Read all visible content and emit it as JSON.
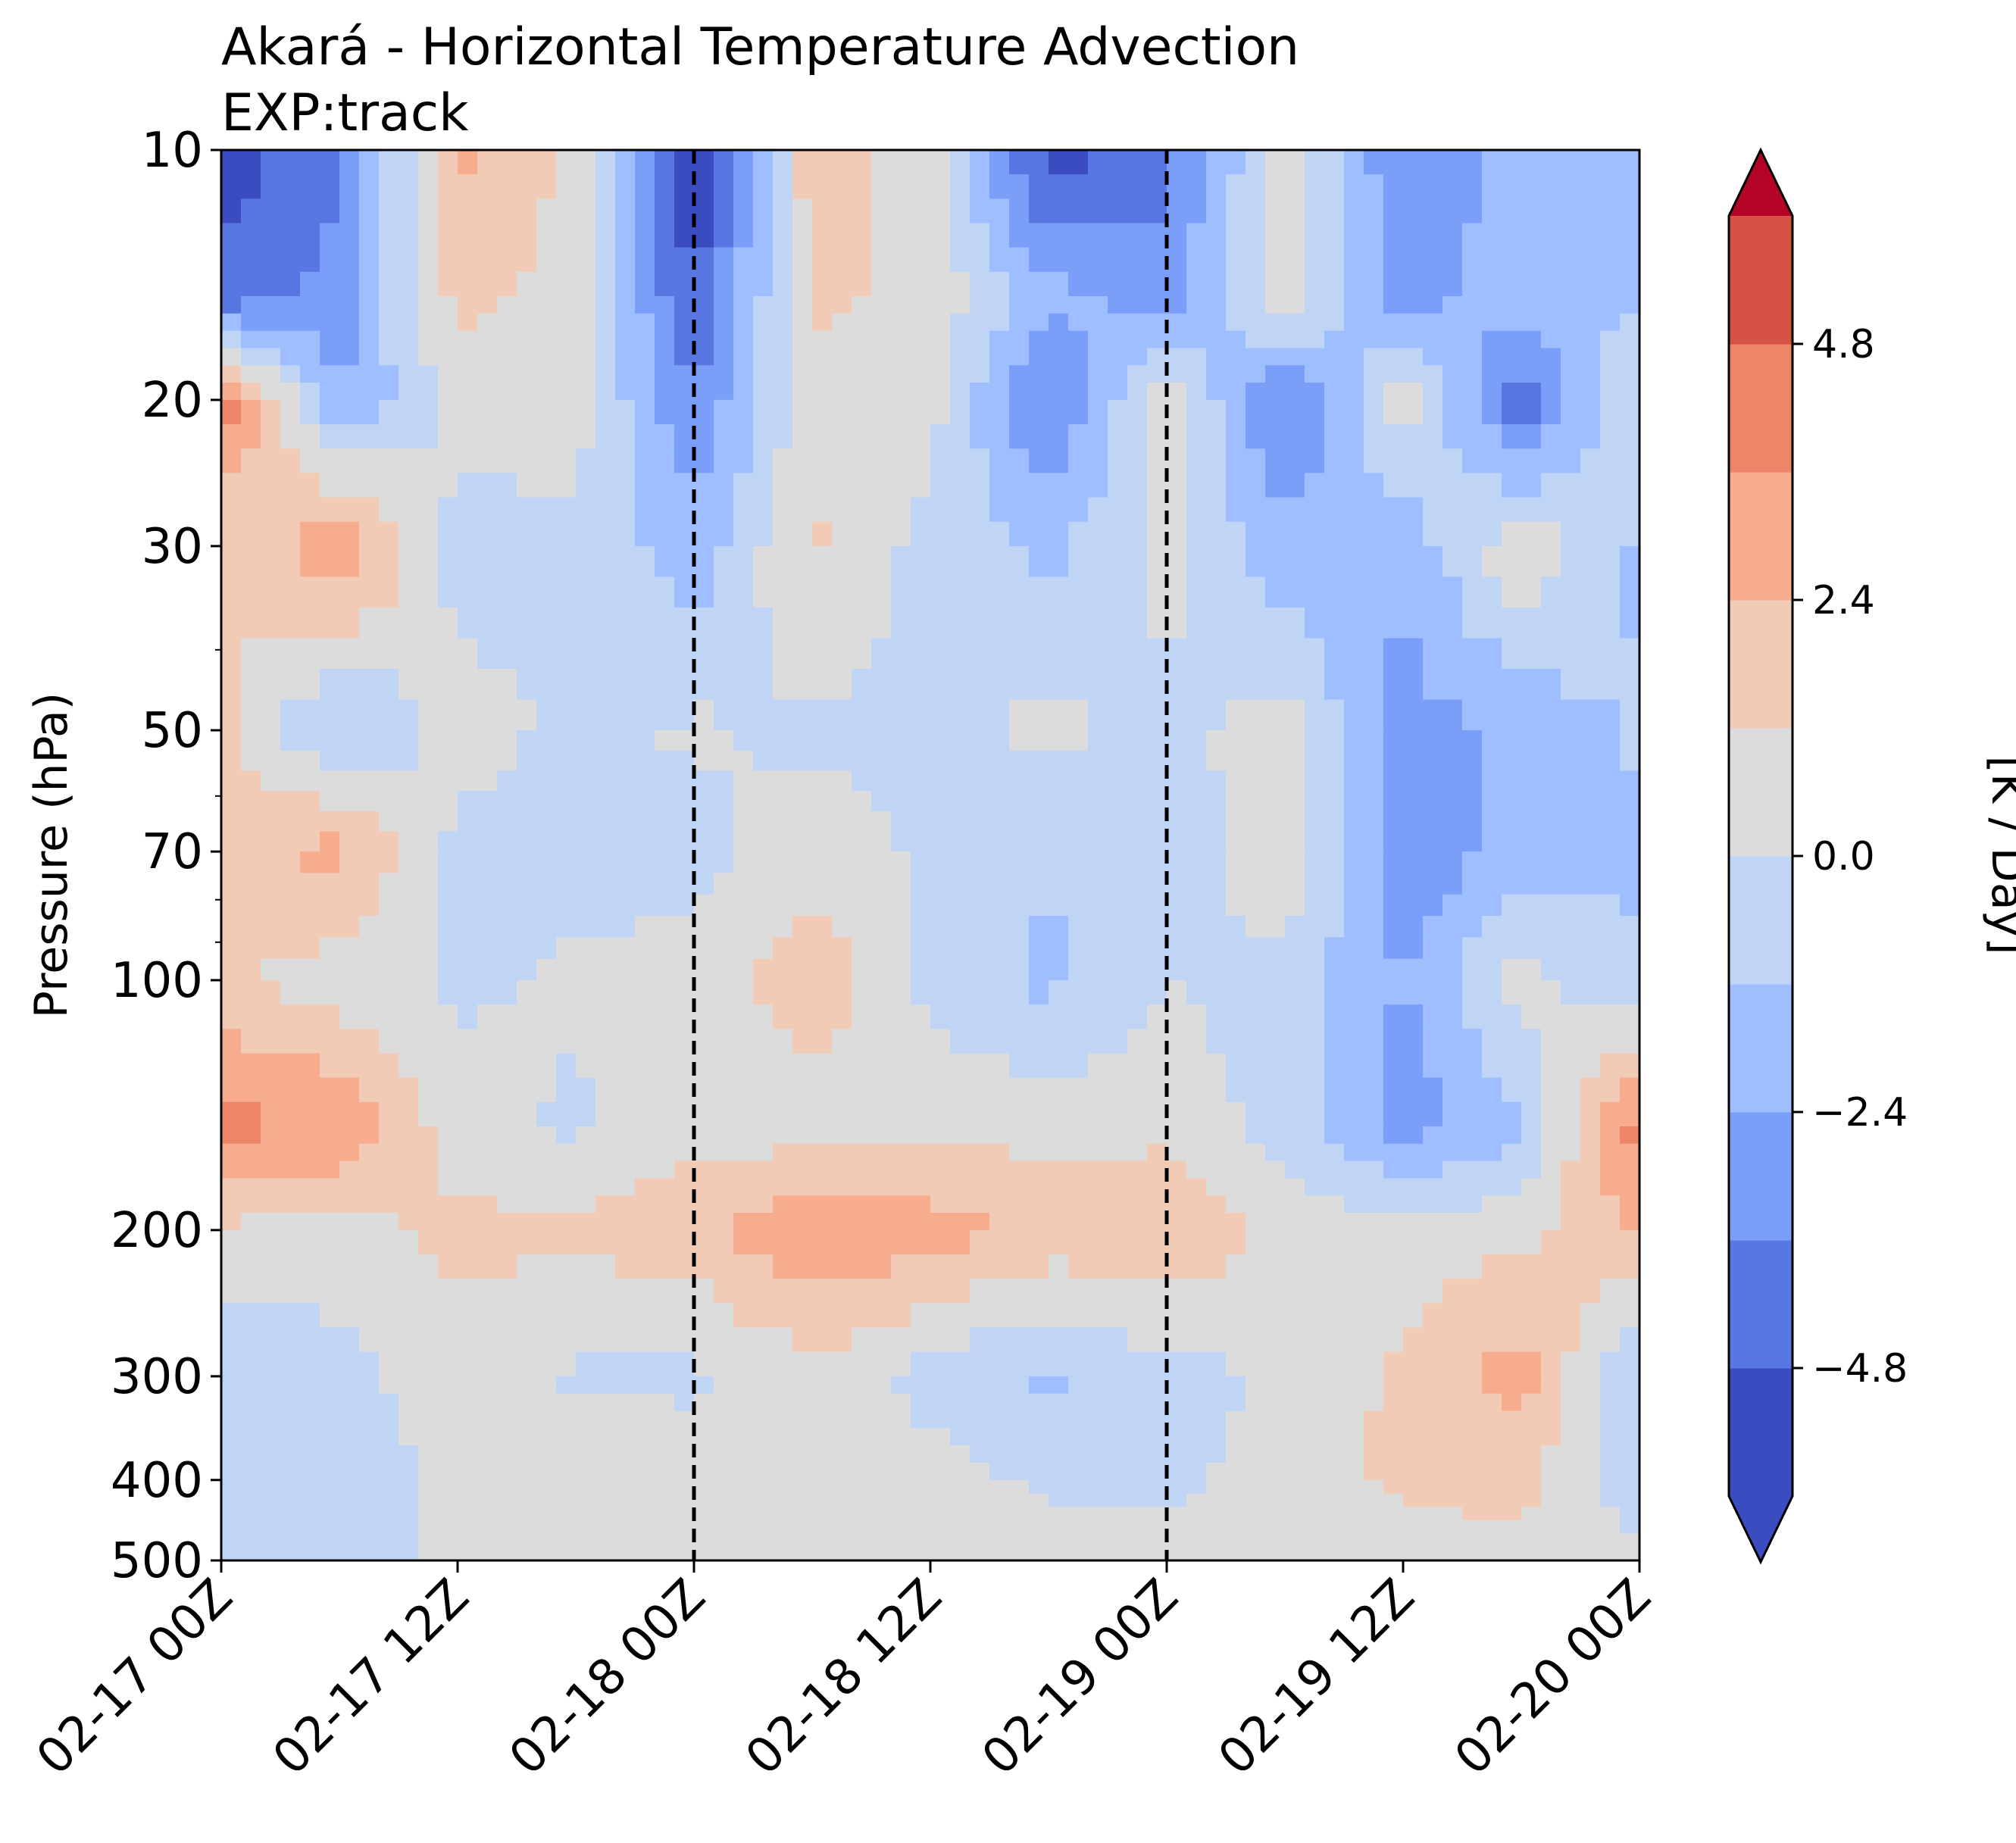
{
  "chart_data": {
    "type": "heatmap",
    "title": "Akará - Horizontal Temperature Advection",
    "subtitle": "EXP:track",
    "xlabel": "",
    "ylabel": "Pressure (hPa)",
    "y_scale": "log",
    "y_inverted": true,
    "ylim": [
      500,
      10
    ],
    "y_ticks": [
      10,
      20,
      30,
      50,
      70,
      100,
      200,
      300,
      400,
      500
    ],
    "y_tick_labels": [
      "10",
      "20",
      "30",
      "50",
      "70",
      "100",
      "200",
      "300",
      "400",
      "500"
    ],
    "x_tick_labels": [
      "02-17 00Z",
      "02-17 12Z",
      "02-18 00Z",
      "02-18 12Z",
      "02-19 00Z",
      "02-19 12Z",
      "02-20 00Z"
    ],
    "x": [
      "02-17 00Z",
      "02-17 06Z",
      "02-17 12Z",
      "02-17 18Z",
      "02-18 00Z",
      "02-18 06Z",
      "02-18 12Z",
      "02-18 18Z",
      "02-19 00Z",
      "02-19 06Z",
      "02-19 12Z",
      "02-19 18Z",
      "02-20 00Z"
    ],
    "y": [
      10,
      15,
      20,
      30,
      50,
      70,
      100,
      150,
      200,
      300,
      400,
      500
    ],
    "z": [
      [
        -5.5,
        -4.0,
        2.8,
        0.8,
        -6.0,
        2.0,
        0.5,
        -5.5,
        -4.0,
        0.5,
        -3.5,
        -2.0,
        -1.5
      ],
      [
        -4.5,
        -3.0,
        1.5,
        0.8,
        -5.0,
        1.5,
        0.8,
        -2.0,
        -3.0,
        1.0,
        -3.0,
        -1.5,
        -1.5
      ],
      [
        4.5,
        -2.5,
        0.5,
        0.5,
        -3.5,
        0.8,
        0.5,
        -4.0,
        0.8,
        -4.0,
        0.8,
        -4.5,
        0.5
      ],
      [
        1.0,
        3.5,
        -0.5,
        -0.2,
        -2.0,
        1.5,
        -0.5,
        -1.5,
        0.5,
        -2.0,
        -2.0,
        1.0,
        -1.5
      ],
      [
        1.5,
        -1.5,
        0.5,
        -0.3,
        0.2,
        -0.3,
        -0.3,
        0.3,
        -0.3,
        0.5,
        -3.0,
        -2.0,
        -1.0
      ],
      [
        2.0,
        2.8,
        -0.3,
        -0.5,
        -0.5,
        0.8,
        -0.3,
        -1.0,
        -0.8,
        1.0,
        -3.5,
        -1.8,
        -1.5
      ],
      [
        1.5,
        0.5,
        -0.2,
        0.2,
        0.5,
        2.0,
        -0.3,
        -1.5,
        0.0,
        -0.5,
        -2.5,
        0.5,
        -1.0
      ],
      [
        4.0,
        3.5,
        0.5,
        -0.2,
        0.8,
        0.5,
        0.8,
        0.8,
        0.8,
        -0.5,
        -3.0,
        -1.5,
        4.5
      ],
      [
        1.0,
        0.8,
        1.5,
        1.5,
        2.0,
        3.5,
        3.0,
        2.0,
        2.5,
        0.8,
        0.5,
        0.8,
        2.5
      ],
      [
        -1.2,
        -0.5,
        0.8,
        -0.2,
        -0.2,
        0.8,
        -0.5,
        -1.5,
        -0.5,
        0.2,
        1.5,
        3.0,
        -1.5
      ],
      [
        -1.2,
        -1.0,
        0.5,
        1.0,
        0.5,
        0.8,
        0.5,
        -0.2,
        -0.3,
        0.5,
        1.5,
        1.5,
        -1.0
      ],
      [
        -0.5,
        -0.5,
        0.2,
        0.5,
        0.2,
        0.3,
        0.8,
        0.5,
        0.5,
        0.3,
        0.5,
        1.0,
        0.5
      ]
    ],
    "units": "[K / Day]",
    "colorbar": {
      "label": "[K / Day]",
      "levels": [
        -6.0,
        -4.8,
        -3.6,
        -2.4,
        -1.2,
        0.0,
        1.2,
        2.4,
        3.6,
        4.8,
        6.0
      ],
      "tick_values": [
        -4.8,
        -2.4,
        0.0,
        2.4,
        4.8
      ],
      "tick_labels": [
        "−4.8",
        "−2.4",
        "0.0",
        "2.4",
        "4.8"
      ],
      "colors": [
        "#3b4cc0",
        "#5977e3",
        "#7b9ff9",
        "#9ebeff",
        "#c0d4f5",
        "#dddcdc",
        "#f2cbb7",
        "#f7ac8e",
        "#ee8468",
        "#d65244",
        "#b40426"
      ],
      "extend": "both",
      "under_color": "#3b4cc0",
      "over_color": "#b40426",
      "placement": "right"
    },
    "vertical_lines": {
      "style": "dashed",
      "color": "#000000",
      "positions": [
        "02-18 00Z",
        "02-19 00Z"
      ]
    },
    "grid": false
  }
}
